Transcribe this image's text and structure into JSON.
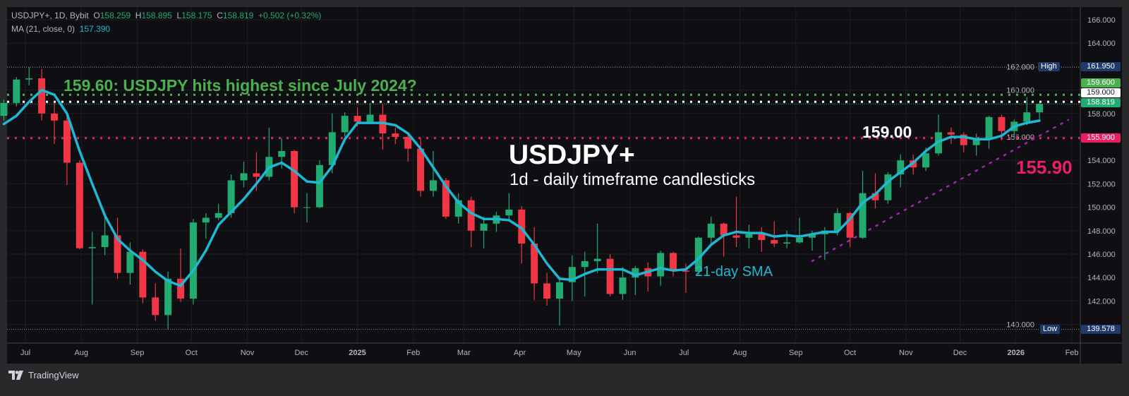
{
  "legend": {
    "symbol": "USDJPY+, 1D, Bybit",
    "open_label": "O",
    "open": "158.259",
    "high_label": "H",
    "high": "158.895",
    "low_label": "L",
    "low": "158.175",
    "close_label": "C",
    "close": "158.819",
    "change": "+0.502 (+0.32%)",
    "ma_label": "MA (21, close, 0)",
    "ma_value": "157.390"
  },
  "annotations": {
    "headline": "159.60: USDJPY hits highest since July 2024?",
    "title": "USDJPY+",
    "subtitle": "1d - daily timeframe candlesticks",
    "level_159": "159.00",
    "level_155": "155.90",
    "sma_label": "21-day SMA"
  },
  "price_labels": {
    "high_tag": "High",
    "high_value": "161.950",
    "low_tag": "Low",
    "low_value": "139.578",
    "green_level": "159.600",
    "white_level": "159.000",
    "last_price": "158.819",
    "red_level": "155.900"
  },
  "footer": {
    "brand": "TradingView"
  },
  "colors": {
    "up": "#22ab70",
    "down": "#f23645",
    "ma": "#1fb8d4",
    "green_line": "#4caf50",
    "red_line": "#e91e63",
    "trend": "#9c27b0",
    "background": "#0f0f13"
  },
  "chart_data": {
    "type": "candlestick",
    "ylim": [
      139,
      166.6
    ],
    "y_ticks": [
      "166.000",
      "164.000",
      "162.000",
      "160.000",
      "158.000",
      "156.000",
      "154.000",
      "152.000",
      "150.000",
      "148.000",
      "146.000",
      "144.000",
      "142.000",
      "140.000"
    ],
    "x_ticks": [
      {
        "label": "Jul",
        "date": "2024-07-01"
      },
      {
        "label": "Aug",
        "date": "2024-08-01"
      },
      {
        "label": "Sep",
        "date": "2024-09-01"
      },
      {
        "label": "Oct",
        "date": "2024-10-01"
      },
      {
        "label": "Nov",
        "date": "2024-11-01"
      },
      {
        "label": "Dec",
        "date": "2024-12-01"
      },
      {
        "label": "2025",
        "date": "2025-01-01",
        "bold": true
      },
      {
        "label": "Feb",
        "date": "2025-02-01"
      },
      {
        "label": "Mar",
        "date": "2025-03-01"
      },
      {
        "label": "Apr",
        "date": "2025-04-01"
      },
      {
        "label": "May",
        "date": "2025-05-01"
      },
      {
        "label": "Jun",
        "date": "2025-06-01"
      },
      {
        "label": "Jul",
        "date": "2025-07-01"
      },
      {
        "label": "Aug",
        "date": "2025-08-01"
      },
      {
        "label": "Sep",
        "date": "2025-09-01"
      },
      {
        "label": "Oct",
        "date": "2025-10-01"
      },
      {
        "label": "Nov",
        "date": "2025-11-01"
      },
      {
        "label": "Dec",
        "date": "2025-12-01"
      },
      {
        "label": "2026",
        "date": "2026-01-01",
        "bold": true
      },
      {
        "label": "Feb",
        "date": "2026-02-01"
      }
    ],
    "horizontal_levels": [
      {
        "value": 161.95,
        "style": "thin-dotted",
        "color": "#8a8d96"
      },
      {
        "value": 159.6,
        "style": "thick-dotted",
        "color": "#4caf50"
      },
      {
        "value": 159.0,
        "style": "thick-dotted",
        "color": "#ffffff"
      },
      {
        "value": 158.819,
        "style": "thin-dotted",
        "color": "#22ab70"
      },
      {
        "value": 155.9,
        "style": "thick-dotted",
        "color": "#e91e63"
      },
      {
        "value": 139.578,
        "style": "thin-dotted",
        "color": "#8a8d96"
      }
    ],
    "trendline": [
      [
        "2025-09-10",
        145.4
      ],
      [
        "2026-01-30",
        157.45
      ]
    ],
    "candles_ohlc": [
      [
        "2024-06-21",
        157.8,
        159.2,
        157.4,
        158.9
      ],
      [
        "2024-06-28",
        158.9,
        161.1,
        158.6,
        160.9
      ],
      [
        "2024-07-05",
        160.9,
        161.95,
        160.4,
        161.0
      ],
      [
        "2024-07-12",
        161.0,
        161.8,
        157.4,
        158.0
      ],
      [
        "2024-07-19",
        158.0,
        158.9,
        155.4,
        157.4
      ],
      [
        "2024-07-26",
        157.4,
        157.8,
        151.9,
        153.8
      ],
      [
        "2024-08-02",
        153.8,
        154.0,
        146.4,
        146.5
      ],
      [
        "2024-08-09",
        146.5,
        147.9,
        141.7,
        146.6
      ],
      [
        "2024-08-16",
        146.6,
        149.4,
        145.9,
        147.6
      ],
      [
        "2024-08-23",
        147.6,
        149.1,
        143.9,
        144.4
      ],
      [
        "2024-08-30",
        144.4,
        147.0,
        143.4,
        146.2
      ],
      [
        "2024-09-06",
        146.2,
        146.4,
        141.8,
        142.3
      ],
      [
        "2024-09-13",
        142.3,
        143.5,
        140.3,
        140.8
      ],
      [
        "2024-09-20",
        140.8,
        144.5,
        139.578,
        143.9
      ],
      [
        "2024-09-27",
        143.9,
        146.5,
        141.9,
        142.2
      ],
      [
        "2024-10-04",
        142.2,
        149.0,
        141.7,
        148.7
      ],
      [
        "2024-10-11",
        148.7,
        149.5,
        147.3,
        149.1
      ],
      [
        "2024-10-18",
        149.1,
        150.3,
        148.9,
        149.5
      ],
      [
        "2024-10-25",
        149.5,
        152.8,
        149.1,
        152.3
      ],
      [
        "2024-11-01",
        152.3,
        153.9,
        151.7,
        152.9
      ],
      [
        "2024-11-08",
        152.9,
        154.7,
        151.4,
        152.6
      ],
      [
        "2024-11-15",
        152.6,
        156.8,
        152.3,
        154.3
      ],
      [
        "2024-11-22",
        154.3,
        155.9,
        153.3,
        154.8
      ],
      [
        "2024-11-29",
        154.8,
        154.9,
        149.5,
        150.0
      ],
      [
        "2024-12-06",
        150.0,
        151.2,
        148.7,
        150.0
      ],
      [
        "2024-12-13",
        150.0,
        154.0,
        149.9,
        153.6
      ],
      [
        "2024-12-20",
        153.6,
        158.0,
        152.9,
        156.4
      ],
      [
        "2024-12-27",
        156.4,
        158.1,
        156.0,
        157.8
      ],
      [
        "2025-01-03",
        157.8,
        158.5,
        156.9,
        157.3
      ],
      [
        "2025-01-10",
        157.3,
        158.9,
        157.1,
        157.9
      ],
      [
        "2025-01-17",
        157.9,
        158.8,
        154.9,
        156.3
      ],
      [
        "2025-01-24",
        156.3,
        156.8,
        155.4,
        156.0
      ],
      [
        "2025-01-31",
        156.0,
        156.2,
        153.9,
        155.0
      ],
      [
        "2025-02-07",
        155.0,
        155.9,
        150.9,
        151.4
      ],
      [
        "2025-02-14",
        151.4,
        154.8,
        150.9,
        152.3
      ],
      [
        "2025-02-21",
        152.3,
        152.5,
        149.0,
        149.2
      ],
      [
        "2025-02-28",
        149.2,
        151.2,
        148.6,
        150.6
      ],
      [
        "2025-03-07",
        150.6,
        150.9,
        146.6,
        148.0
      ],
      [
        "2025-03-14",
        148.0,
        149.2,
        146.5,
        148.6
      ],
      [
        "2025-03-21",
        148.6,
        149.6,
        147.9,
        149.3
      ],
      [
        "2025-03-28",
        149.3,
        151.2,
        149.0,
        149.8
      ],
      [
        "2025-04-04",
        149.8,
        150.1,
        145.2,
        146.9
      ],
      [
        "2025-04-11",
        146.9,
        148.3,
        142.1,
        143.5
      ],
      [
        "2025-04-18",
        143.5,
        144.4,
        141.6,
        142.2
      ],
      [
        "2025-04-25",
        142.2,
        144.0,
        139.9,
        143.6
      ],
      [
        "2025-05-02",
        143.6,
        145.9,
        142.0,
        144.9
      ],
      [
        "2025-05-09",
        144.9,
        146.2,
        142.4,
        145.4
      ],
      [
        "2025-05-16",
        145.4,
        148.6,
        144.4,
        145.6
      ],
      [
        "2025-05-23",
        145.6,
        146.0,
        142.4,
        142.6
      ],
      [
        "2025-05-30",
        142.6,
        144.9,
        142.1,
        144.0
      ],
      [
        "2025-06-06",
        144.0,
        145.0,
        142.5,
        144.8
      ],
      [
        "2025-06-13",
        144.8,
        145.3,
        142.8,
        144.1
      ],
      [
        "2025-06-20",
        144.1,
        146.3,
        143.3,
        146.1
      ],
      [
        "2025-06-27",
        146.1,
        146.2,
        144.1,
        144.6
      ],
      [
        "2025-07-04",
        144.6,
        145.2,
        142.7,
        144.5
      ],
      [
        "2025-07-11",
        144.5,
        147.5,
        144.2,
        147.4
      ],
      [
        "2025-07-18",
        147.4,
        149.2,
        146.9,
        148.6
      ],
      [
        "2025-07-25",
        148.6,
        148.7,
        145.8,
        147.6
      ],
      [
        "2025-08-01",
        147.6,
        150.9,
        146.6,
        147.4
      ],
      [
        "2025-08-08",
        147.4,
        148.5,
        146.5,
        147.7
      ],
      [
        "2025-08-15",
        147.7,
        148.3,
        146.2,
        147.2
      ],
      [
        "2025-08-22",
        147.2,
        148.8,
        146.6,
        146.9
      ],
      [
        "2025-08-29",
        146.9,
        148.0,
        146.5,
        147.0
      ],
      [
        "2025-09-05",
        147.0,
        149.1,
        146.9,
        147.4
      ],
      [
        "2025-09-12",
        147.4,
        148.0,
        146.3,
        147.7
      ],
      [
        "2025-09-19",
        147.7,
        148.3,
        145.5,
        148.0
      ],
      [
        "2025-09-26",
        148.0,
        149.9,
        147.6,
        149.5
      ],
      [
        "2025-10-03",
        149.5,
        149.6,
        146.6,
        147.4
      ],
      [
        "2025-10-10",
        147.4,
        153.1,
        147.3,
        151.2
      ],
      [
        "2025-10-17",
        151.2,
        152.9,
        149.9,
        150.6
      ],
      [
        "2025-10-24",
        150.6,
        153.0,
        150.3,
        152.8
      ],
      [
        "2025-10-31",
        152.8,
        154.5,
        151.7,
        154.0
      ],
      [
        "2025-11-07",
        154.0,
        154.5,
        152.8,
        153.4
      ],
      [
        "2025-11-14",
        153.4,
        155.1,
        153.1,
        154.6
      ],
      [
        "2025-11-21",
        154.6,
        157.9,
        154.4,
        156.4
      ],
      [
        "2025-11-28",
        156.4,
        156.8,
        155.4,
        156.2
      ],
      [
        "2025-12-05",
        156.2,
        156.4,
        154.7,
        155.3
      ],
      [
        "2025-12-12",
        155.3,
        156.3,
        154.4,
        155.8
      ],
      [
        "2025-12-19",
        155.8,
        157.8,
        155.0,
        157.7
      ],
      [
        "2025-12-26",
        157.7,
        157.9,
        155.7,
        156.5
      ],
      [
        "2026-01-02",
        156.5,
        157.5,
        155.9,
        157.3
      ],
      [
        "2026-01-09",
        157.3,
        159.4,
        157.0,
        158.1
      ],
      [
        "2026-01-16",
        158.1,
        158.9,
        157.5,
        158.819
      ]
    ],
    "ma_21": [
      157.1,
      157.8,
      159.0,
      160.0,
      159.6,
      158.0,
      154.8,
      152.0,
      149.3,
      147.3,
      146.3,
      145.5,
      144.5,
      143.7,
      143.3,
      144.6,
      146.3,
      148.5,
      149.6,
      150.7,
      152.0,
      153.4,
      153.8,
      153.1,
      152.2,
      152.1,
      153.5,
      155.8,
      157.2,
      157.2,
      157.2,
      157.0,
      156.3,
      155.0,
      153.4,
      151.8,
      150.4,
      149.5,
      149.0,
      149.0,
      148.9,
      148.2,
      146.8,
      145.2,
      143.9,
      143.8,
      144.3,
      144.7,
      144.7,
      144.7,
      144.2,
      144.5,
      144.8,
      144.6,
      144.7,
      145.6,
      146.8,
      147.6,
      147.9,
      147.8,
      147.8,
      147.5,
      147.6,
      147.5,
      147.7,
      147.9,
      147.9,
      149.0,
      150.4,
      151.1,
      152.2,
      153.0,
      153.8,
      154.8,
      155.6,
      156.0,
      156.0,
      155.8,
      155.8,
      156.1,
      156.9,
      157.2,
      157.39
    ]
  }
}
